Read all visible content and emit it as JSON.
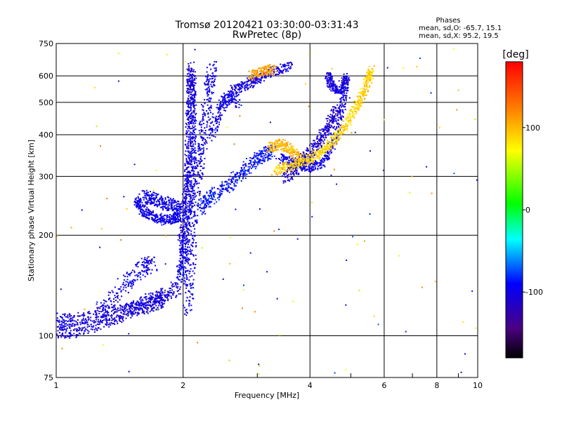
{
  "chart_data": {
    "type": "scatter",
    "title": "Tromsø 20120421 03:30:00-03:31:43",
    "subtitle": "RwPretec (8p)",
    "xlabel": "Frequency [MHz]",
    "ylabel": "Stationary phase Virtual Height [km]",
    "x_scale": "log",
    "y_scale": "log",
    "xlim": [
      1,
      10
    ],
    "ylim": [
      75,
      750
    ],
    "xticks": [
      1,
      2,
      4,
      6,
      8,
      10
    ],
    "xtick_labels": [
      "1",
      "2",
      "4",
      "6",
      "8",
      "10"
    ],
    "yticks": [
      75,
      100,
      200,
      300,
      400,
      500,
      600,
      750
    ],
    "ytick_labels": [
      "75",
      "100",
      "200",
      "300",
      "400",
      "500",
      "600",
      "750"
    ],
    "grid": true,
    "phases_legend": {
      "heading": "Phases",
      "line_o": "mean, sd,O: -65.7, 15.1",
      "line_x": "mean, sd,X:  95.2, 19.5"
    },
    "colorbar": {
      "label": "[deg]",
      "range": [
        -180,
        180
      ],
      "ticks": [
        -100,
        0,
        100
      ],
      "tick_labels": [
        "-100",
        "0",
        "100"
      ]
    },
    "traces": [
      {
        "phase": -105,
        "jitter": 0.04,
        "points": [
          [
            1.0,
            112
          ],
          [
            1.12,
            112
          ],
          [
            1.3,
            116
          ],
          [
            1.5,
            120
          ],
          [
            1.65,
            128
          ],
          [
            1.8,
            132
          ],
          [
            1.95,
            140
          ]
        ]
      },
      {
        "phase": -105,
        "jitter": 0.04,
        "points": [
          [
            1.0,
            103
          ],
          [
            1.1,
            103
          ],
          [
            1.25,
            108
          ],
          [
            1.4,
            114
          ],
          [
            1.55,
            120
          ],
          [
            1.7,
            124
          ],
          [
            1.8,
            128
          ]
        ]
      },
      {
        "phase": -100,
        "jitter": 0.05,
        "points": [
          [
            1.25,
            118
          ],
          [
            1.45,
            142
          ],
          [
            1.6,
            160
          ],
          [
            1.7,
            165
          ]
        ]
      },
      {
        "phase": -100,
        "jitter": 0.03,
        "points": [
          [
            1.55,
            255
          ],
          [
            1.6,
            238
          ],
          [
            1.7,
            226
          ],
          [
            1.8,
            222
          ],
          [
            1.9,
            224
          ],
          [
            1.95,
            228
          ]
        ]
      },
      {
        "phase": -100,
        "jitter": 0.04,
        "points": [
          [
            1.6,
            262
          ],
          [
            1.7,
            256
          ],
          [
            1.8,
            250
          ],
          [
            1.9,
            244
          ],
          [
            2.0,
            238
          ]
        ]
      },
      {
        "phase": -95,
        "jitter": 0.04,
        "points": [
          [
            1.97,
            150
          ],
          [
            2.0,
            170
          ],
          [
            2.03,
            200
          ],
          [
            2.06,
            260
          ],
          [
            2.08,
            320
          ],
          [
            2.1,
            400
          ],
          [
            2.1,
            500
          ],
          [
            2.1,
            600
          ]
        ]
      },
      {
        "phase": -100,
        "jitter": 0.05,
        "points": [
          [
            2.05,
            120
          ],
          [
            2.08,
            160
          ],
          [
            2.1,
            220
          ],
          [
            2.15,
            280
          ],
          [
            2.2,
            340
          ],
          [
            2.25,
            420
          ],
          [
            2.3,
            540
          ],
          [
            2.35,
            640
          ]
        ]
      },
      {
        "phase": -110,
        "jitter": 0.04,
        "points": [
          [
            1.98,
            180
          ],
          [
            2.02,
            230
          ],
          [
            2.05,
            300
          ],
          [
            2.07,
            380
          ],
          [
            2.08,
            480
          ],
          [
            2.09,
            560
          ],
          [
            2.09,
            640
          ]
        ]
      },
      {
        "phase": -90,
        "jitter": 0.04,
        "points": [
          [
            2.2,
            240
          ],
          [
            2.3,
            258
          ],
          [
            2.5,
            276
          ],
          [
            2.7,
            300
          ],
          [
            2.9,
            328
          ],
          [
            3.1,
            348
          ],
          [
            3.3,
            356
          ]
        ]
      },
      {
        "phase": -105,
        "jitter": 0.03,
        "points": [
          [
            2.6,
            540
          ],
          [
            2.8,
            560
          ],
          [
            3.0,
            590
          ],
          [
            3.3,
            622
          ],
          [
            3.6,
            640
          ]
        ]
      },
      {
        "phase": -100,
        "jitter": 0.04,
        "points": [
          [
            2.35,
            400
          ],
          [
            2.45,
            480
          ],
          [
            2.55,
            520
          ],
          [
            2.7,
            500
          ]
        ]
      },
      {
        "phase": -110,
        "jitter": 0.04,
        "points": [
          [
            3.5,
            300
          ],
          [
            3.7,
            320
          ],
          [
            3.9,
            340
          ],
          [
            4.1,
            360
          ],
          [
            4.3,
            400
          ],
          [
            4.5,
            440
          ],
          [
            4.7,
            490
          ]
        ]
      },
      {
        "phase": -100,
        "jitter": 0.03,
        "points": [
          [
            3.4,
            340
          ],
          [
            3.7,
            330
          ],
          [
            4.0,
            320
          ],
          [
            4.3,
            330
          ],
          [
            4.6,
            390
          ],
          [
            4.8,
            500
          ],
          [
            4.9,
            600
          ]
        ]
      },
      {
        "phase": -105,
        "jitter": 0.03,
        "points": [
          [
            4.4,
            600
          ],
          [
            4.5,
            560
          ],
          [
            4.7,
            540
          ],
          [
            4.9,
            600
          ]
        ]
      },
      {
        "phase": 90,
        "jitter": 0.03,
        "points": [
          [
            3.3,
            312
          ],
          [
            3.6,
            322
          ],
          [
            3.9,
            334
          ],
          [
            4.2,
            350
          ],
          [
            4.5,
            378
          ],
          [
            4.8,
            418
          ],
          [
            5.1,
            470
          ],
          [
            5.3,
            520
          ],
          [
            5.5,
            580
          ],
          [
            5.6,
            630
          ]
        ]
      },
      {
        "phase": 100,
        "jitter": 0.03,
        "points": [
          [
            3.2,
            366
          ],
          [
            3.4,
            376
          ],
          [
            3.6,
            360
          ],
          [
            3.8,
            340
          ]
        ]
      },
      {
        "phase": 110,
        "jitter": 0.03,
        "points": [
          [
            2.9,
            600
          ],
          [
            3.1,
            620
          ],
          [
            3.3,
            630
          ]
        ]
      }
    ]
  }
}
